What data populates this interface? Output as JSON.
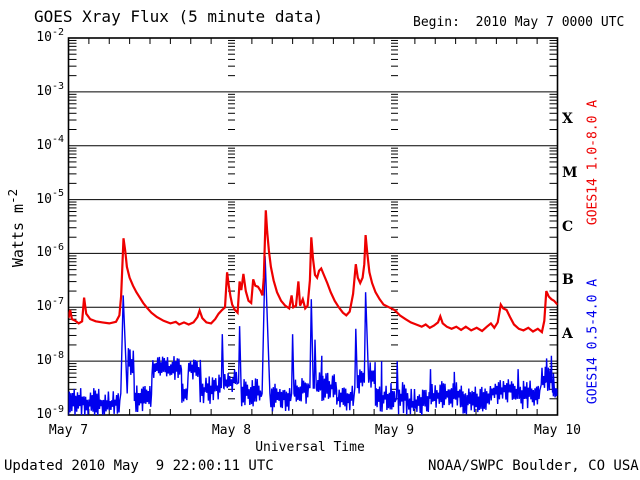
{
  "header": {
    "title": "GOES Xray Flux (5 minute data)",
    "begin_label": "Begin:  2010 May 7 0000 UTC"
  },
  "y_axis": {
    "title_base": "Watts m",
    "title_exponent": "-2",
    "tick_base": "10",
    "tick_exponents": [
      "-2",
      "-3",
      "-4",
      "-5",
      "-6",
      "-7",
      "-8",
      "-9"
    ]
  },
  "x_axis": {
    "title": "Universal Time",
    "tick_labels": [
      "May 7",
      "May 8",
      "May 9",
      "May 10"
    ],
    "tick_hours": [
      0,
      24,
      48,
      72
    ]
  },
  "right_axis": {
    "class_letters": [
      "X",
      "M",
      "C",
      "B",
      "A"
    ]
  },
  "series_labels": {
    "long_red": "GOES14 1.0-8.0 A",
    "short_blue": "GOES14 0.5-4.0 A"
  },
  "footer": {
    "updated": "Updated 2010 May  9 22:00:11 UTC",
    "credit": "NOAA/SWPC Boulder, CO USA"
  },
  "colors": {
    "long_red": "#ee0000",
    "short_blue": "#0000ee",
    "axis": "#000000",
    "background": "#ffffff"
  },
  "chart_data": {
    "type": "line",
    "title": "GOES Xray Flux (5 minute data)",
    "xlabel": "Universal Time",
    "ylabel": "Watts m^-2",
    "x_unit": "hours since 2010 May 7 0000 UTC",
    "xlim": [
      0,
      72
    ],
    "ylim_log10": [
      -9,
      -2
    ],
    "grid": "horizontal solid lines at each decade, dashed tick-lines at day boundaries",
    "legend_position": "right side, rotated",
    "flare_class_band_centers_log10": {
      "X": -3.5,
      "M": -4.5,
      "C": -5.5,
      "B": -6.5,
      "A": -7.5
    },
    "series": [
      {
        "name": "GOES14 1.0-8.0 A",
        "color": "#ee0000",
        "points_h_log10": [
          [
            0,
            -7.2
          ],
          [
            0.25,
            -7.05
          ],
          [
            0.5,
            -7.22
          ],
          [
            1,
            -7.25
          ],
          [
            1.5,
            -7.3
          ],
          [
            2.0,
            -7.26
          ],
          [
            2.3,
            -6.82
          ],
          [
            2.6,
            -7.12
          ],
          [
            3.2,
            -7.22
          ],
          [
            4,
            -7.26
          ],
          [
            5,
            -7.28
          ],
          [
            6,
            -7.3
          ],
          [
            7,
            -7.27
          ],
          [
            7.5,
            -7.15
          ],
          [
            7.75,
            -6.8
          ],
          [
            8.1,
            -5.72
          ],
          [
            8.35,
            -5.95
          ],
          [
            8.6,
            -6.25
          ],
          [
            9,
            -6.45
          ],
          [
            9.5,
            -6.6
          ],
          [
            10,
            -6.72
          ],
          [
            10.5,
            -6.82
          ],
          [
            11,
            -6.92
          ],
          [
            11.5,
            -7.0
          ],
          [
            12.2,
            -7.1
          ],
          [
            13,
            -7.18
          ],
          [
            14,
            -7.25
          ],
          [
            15,
            -7.3
          ],
          [
            15.8,
            -7.27
          ],
          [
            16.3,
            -7.32
          ],
          [
            17,
            -7.28
          ],
          [
            17.7,
            -7.32
          ],
          [
            18.4,
            -7.28
          ],
          [
            19,
            -7.18
          ],
          [
            19.3,
            -7.06
          ],
          [
            19.7,
            -7.2
          ],
          [
            20.3,
            -7.28
          ],
          [
            21,
            -7.3
          ],
          [
            21.6,
            -7.22
          ],
          [
            22.1,
            -7.12
          ],
          [
            22.6,
            -7.05
          ],
          [
            23.05,
            -7.0
          ],
          [
            23.35,
            -6.35
          ],
          [
            23.6,
            -6.6
          ],
          [
            23.85,
            -6.8
          ],
          [
            24.1,
            -6.95
          ],
          [
            24.5,
            -7.05
          ],
          [
            24.9,
            -7.1
          ],
          [
            25.2,
            -6.52
          ],
          [
            25.45,
            -6.68
          ],
          [
            25.75,
            -6.38
          ],
          [
            26.1,
            -6.7
          ],
          [
            26.5,
            -6.88
          ],
          [
            26.9,
            -6.92
          ],
          [
            27.2,
            -6.48
          ],
          [
            27.5,
            -6.6
          ],
          [
            27.9,
            -6.62
          ],
          [
            28.3,
            -6.7
          ],
          [
            28.55,
            -6.78
          ],
          [
            28.75,
            -6.45
          ],
          [
            29.05,
            -5.2
          ],
          [
            29.25,
            -5.6
          ],
          [
            29.5,
            -5.95
          ],
          [
            29.8,
            -6.25
          ],
          [
            30.2,
            -6.5
          ],
          [
            30.7,
            -6.72
          ],
          [
            31.3,
            -6.88
          ],
          [
            31.9,
            -6.97
          ],
          [
            32.5,
            -7.02
          ],
          [
            32.85,
            -6.78
          ],
          [
            33.1,
            -7.0
          ],
          [
            33.5,
            -6.97
          ],
          [
            33.85,
            -6.52
          ],
          [
            34.1,
            -6.97
          ],
          [
            34.5,
            -6.85
          ],
          [
            34.85,
            -7.02
          ],
          [
            35.2,
            -6.97
          ],
          [
            35.55,
            -6.5
          ],
          [
            35.75,
            -5.7
          ],
          [
            36,
            -6.1
          ],
          [
            36.3,
            -6.4
          ],
          [
            36.6,
            -6.45
          ],
          [
            36.9,
            -6.32
          ],
          [
            37.2,
            -6.28
          ],
          [
            37.6,
            -6.4
          ],
          [
            38.1,
            -6.55
          ],
          [
            38.6,
            -6.72
          ],
          [
            39.2,
            -6.88
          ],
          [
            39.8,
            -7.0
          ],
          [
            40.4,
            -7.1
          ],
          [
            40.9,
            -7.15
          ],
          [
            41.4,
            -7.08
          ],
          [
            41.9,
            -6.75
          ],
          [
            42.3,
            -6.2
          ],
          [
            42.6,
            -6.45
          ],
          [
            42.95,
            -6.55
          ],
          [
            43.3,
            -6.45
          ],
          [
            43.55,
            -6.2
          ],
          [
            43.75,
            -5.66
          ],
          [
            44,
            -6.0
          ],
          [
            44.3,
            -6.35
          ],
          [
            44.7,
            -6.55
          ],
          [
            45.2,
            -6.72
          ],
          [
            45.8,
            -6.85
          ],
          [
            46.4,
            -6.95
          ],
          [
            47.2,
            -7.0
          ],
          [
            48,
            -7.05
          ],
          [
            48.8,
            -7.15
          ],
          [
            49.6,
            -7.22
          ],
          [
            50.4,
            -7.28
          ],
          [
            51.2,
            -7.32
          ],
          [
            52,
            -7.36
          ],
          [
            52.6,
            -7.32
          ],
          [
            53.2,
            -7.38
          ],
          [
            53.8,
            -7.34
          ],
          [
            54.4,
            -7.28
          ],
          [
            54.75,
            -7.17
          ],
          [
            55.1,
            -7.3
          ],
          [
            55.7,
            -7.36
          ],
          [
            56.4,
            -7.4
          ],
          [
            57.1,
            -7.36
          ],
          [
            57.8,
            -7.42
          ],
          [
            58.5,
            -7.36
          ],
          [
            59.3,
            -7.43
          ],
          [
            60.1,
            -7.38
          ],
          [
            60.9,
            -7.44
          ],
          [
            61.6,
            -7.36
          ],
          [
            62.2,
            -7.3
          ],
          [
            62.7,
            -7.38
          ],
          [
            63.2,
            -7.28
          ],
          [
            63.65,
            -6.95
          ],
          [
            64,
            -7.02
          ],
          [
            64.5,
            -7.05
          ],
          [
            65,
            -7.18
          ],
          [
            65.6,
            -7.32
          ],
          [
            66.3,
            -7.4
          ],
          [
            67,
            -7.43
          ],
          [
            67.7,
            -7.38
          ],
          [
            68.4,
            -7.45
          ],
          [
            69.1,
            -7.4
          ],
          [
            69.7,
            -7.46
          ],
          [
            70.05,
            -7.25
          ],
          [
            70.35,
            -6.7
          ],
          [
            70.7,
            -6.8
          ],
          [
            71.1,
            -6.85
          ],
          [
            71.5,
            -6.88
          ],
          [
            72,
            -6.95
          ]
        ]
      },
      {
        "name": "GOES14 0.5-4.0 A",
        "color": "#0000ee",
        "noise_envelope_h0_h1_lo_hi": [
          [
            0,
            7.6,
            -9.05,
            -8.5
          ],
          [
            8.7,
            9.7,
            -8.35,
            -7.7
          ],
          [
            9.7,
            12.3,
            -8.95,
            -8.45
          ],
          [
            12.3,
            16.7,
            -8.35,
            -7.9
          ],
          [
            16.7,
            17.6,
            -8.8,
            -8.4
          ],
          [
            17.6,
            19.4,
            -8.35,
            -7.95
          ],
          [
            19.4,
            22.4,
            -8.8,
            -8.25
          ],
          [
            22.9,
            24.9,
            -8.6,
            -8.15
          ],
          [
            25.5,
            28.4,
            -8.85,
            -8.3
          ],
          [
            29.8,
            32.7,
            -8.95,
            -8.4
          ],
          [
            33.3,
            35.4,
            -8.8,
            -8.3
          ],
          [
            36.6,
            39.5,
            -8.75,
            -8.2
          ],
          [
            39.5,
            41.9,
            -8.95,
            -8.45
          ],
          [
            42.55,
            43.45,
            -8.6,
            -8.15
          ],
          [
            44.3,
            45.2,
            -8.5,
            -7.95
          ],
          [
            45.2,
            48.1,
            -8.95,
            -8.4
          ],
          [
            48.6,
            50.1,
            -9.0,
            -8.35
          ],
          [
            50.1,
            53.1,
            -9.05,
            -8.5
          ],
          [
            53.4,
            58.1,
            -8.9,
            -8.35
          ],
          [
            58.1,
            62.0,
            -9.0,
            -8.45
          ],
          [
            62.0,
            66.0,
            -8.8,
            -8.3
          ],
          [
            66.4,
            69.4,
            -8.9,
            -8.35
          ],
          [
            69.6,
            71.4,
            -8.6,
            -8.05
          ],
          [
            71.4,
            72,
            -8.8,
            -8.35
          ]
        ],
        "spikes_h_peak_rise_fall_base": [
          [
            8.05,
            -6.78,
            0.35,
            0.6,
            -8.6
          ],
          [
            22.65,
            -7.5,
            0.15,
            0.2,
            -8.5
          ],
          [
            25.2,
            -7.35,
            0.15,
            0.2,
            -8.4
          ],
          [
            28.95,
            -6.05,
            0.45,
            0.7,
            -8.6
          ],
          [
            33.0,
            -7.5,
            0.15,
            0.2,
            -8.6
          ],
          [
            35.75,
            -6.85,
            0.2,
            0.3,
            -8.5
          ],
          [
            36.3,
            -7.6,
            0.12,
            0.18,
            -8.5
          ],
          [
            37.3,
            -7.9,
            0.12,
            0.18,
            -8.5
          ],
          [
            42.3,
            -7.4,
            0.15,
            0.25,
            -8.5
          ],
          [
            43.75,
            -6.72,
            0.2,
            0.45,
            -8.4
          ],
          [
            46.1,
            -8.0,
            0.12,
            0.2,
            -8.7
          ],
          [
            48.4,
            -8.0,
            0.12,
            0.2,
            -8.7
          ],
          [
            53.3,
            -8.15,
            0.1,
            0.15,
            -8.7
          ],
          [
            56.8,
            -8.2,
            0.1,
            0.15,
            -8.7
          ],
          [
            66.2,
            -8.15,
            0.1,
            0.15,
            -8.7
          ],
          [
            70.4,
            -7.95,
            0.15,
            0.2,
            -8.4
          ],
          [
            71.1,
            -7.9,
            0.15,
            0.2,
            -8.4
          ]
        ]
      }
    ]
  }
}
